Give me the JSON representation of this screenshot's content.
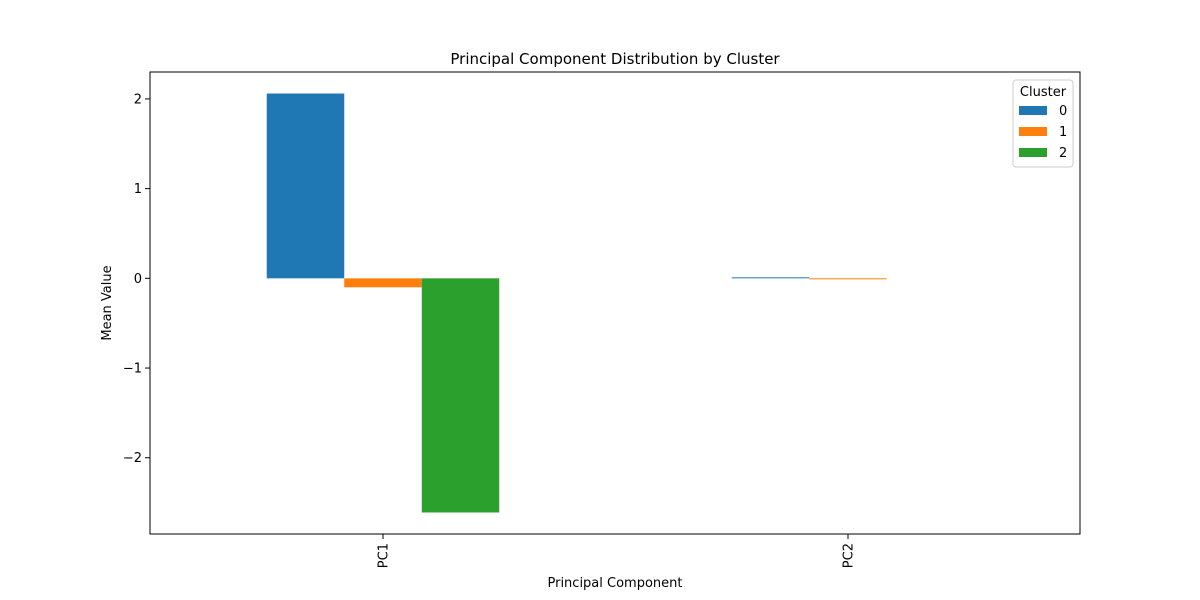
{
  "chart_data": {
    "type": "bar",
    "title": "Principal Component Distribution by Cluster",
    "xlabel": "Principal Component",
    "ylabel": "Mean Value",
    "categories": [
      "PC1",
      "PC2"
    ],
    "series": [
      {
        "name": "0",
        "values": [
          2.06,
          0.01
        ],
        "color": "#1f77b4"
      },
      {
        "name": "1",
        "values": [
          -0.1,
          -0.005
        ],
        "color": "#ff7f0e"
      },
      {
        "name": "2",
        "values": [
          -2.61,
          0.0
        ],
        "color": "#2ca02c"
      }
    ],
    "ylim": [
      -2.85,
      2.3
    ],
    "yticks": [
      2,
      1,
      0,
      -1,
      -2
    ],
    "ytick_labels": [
      "2",
      "1",
      "0",
      "−1",
      "−2"
    ],
    "legend": {
      "title": "Cluster",
      "placement": "top-right"
    },
    "grid": false
  }
}
